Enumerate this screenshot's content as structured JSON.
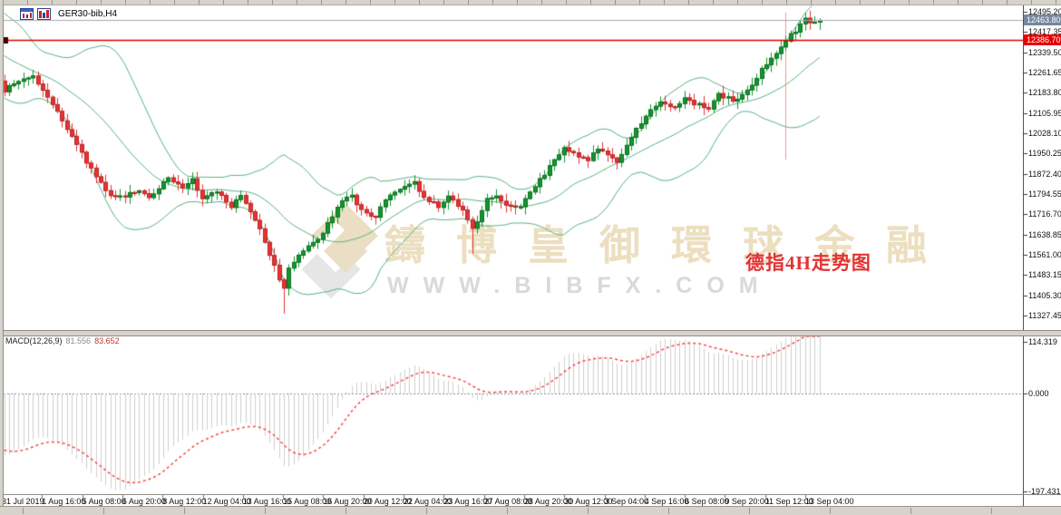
{
  "window": {
    "title": "GER30-bib,H4"
  },
  "toolbar": {
    "icons": [
      "chart-window-icon",
      "bar-chart-icon"
    ]
  },
  "price_axis": {
    "ticks": [
      "12495.20",
      "12417.35",
      "12339.50",
      "12261.65",
      "12183.80",
      "12105.95",
      "12028.10",
      "11950.25",
      "11872.40",
      "11794.55",
      "11716.70",
      "11638.85",
      "11561.00",
      "11483.15",
      "11405.30",
      "11327.45"
    ],
    "bid_box_value": "12463.80",
    "red_line_box_value": "12386.70"
  },
  "time_axis": {
    "labels": [
      "31 Jul 2019",
      "1 Aug 16:00",
      "5 Aug 08:00",
      "6 Aug 20:00",
      "8 Aug 12:00",
      "12 Aug 04:00",
      "13 Aug 16:00",
      "15 Aug 08:00",
      "16 Aug 20:00",
      "20 Aug 12:00",
      "22 Aug 04:00",
      "23 Aug 16:00",
      "27 Aug 08:00",
      "28 Aug 20:00",
      "30 Aug 12:00",
      "3 Sep 04:00",
      "4 Sep 16:00",
      "6 Sep 08:00",
      "9 Sep 20:00",
      "11 Sep 12:00",
      "13 Sep 04:00"
    ]
  },
  "macd_panel": {
    "label": "MACD(12,26,9)",
    "main_value": "81.556",
    "signal_value": "83.652",
    "axis_ticks": [
      "114.319",
      "0.000",
      "-197.431"
    ]
  },
  "watermark": {
    "brand": "鑄博皇御環球金融",
    "url": "WWW.BIBFX.COM"
  },
  "annotation": {
    "text": "德指4H走势图",
    "color": "#e23333"
  },
  "colors": {
    "bull": "#12962e",
    "bull_edge": "#0b6e20",
    "bear": "#e53434",
    "bear_edge": "#bc2323",
    "band": "#57b183",
    "bid_line": "#a9a9b2",
    "red_line": "#dd0000",
    "hist": "#cfcfcf",
    "signal": "#f44848",
    "zero": "#7b8db0",
    "pale_vline": "rgba(238,120,120,0.75)"
  },
  "chart_data": {
    "type": "candlestick",
    "symbol": "GER30-bib",
    "timeframe": "H4",
    "title": "GER30-bib,H4",
    "bars_total": 170,
    "price_axis_range": [
      11327.45,
      12495.2
    ],
    "price_axis_step": 77.85,
    "levels": {
      "bid": 12463.8,
      "red_horizontal_line": 12386.7
    },
    "indicators": [
      {
        "name": "Bollinger Bands",
        "period": 20,
        "deviation": 2
      },
      {
        "name": "MACD",
        "fast": 12,
        "slow": 26,
        "signal": 9,
        "current_main": 81.556,
        "current_signal": 83.652,
        "axis_max": 114.319,
        "axis_min": -197.431
      }
    ],
    "close_anchors": [
      [
        0,
        12190
      ],
      [
        3,
        12235
      ],
      [
        6,
        12245
      ],
      [
        8,
        12195
      ],
      [
        11,
        12115
      ],
      [
        13,
        12050
      ],
      [
        15,
        11985
      ],
      [
        17,
        11915
      ],
      [
        20,
        11835
      ],
      [
        22,
        11790
      ],
      [
        25,
        11785
      ],
      [
        28,
        11815
      ],
      [
        30,
        11785
      ],
      [
        34,
        11855
      ],
      [
        37,
        11820
      ],
      [
        39,
        11850
      ],
      [
        41,
        11780
      ],
      [
        44,
        11805
      ],
      [
        47,
        11745
      ],
      [
        49,
        11790
      ],
      [
        52,
        11700
      ],
      [
        55,
        11560
      ],
      [
        57,
        11470
      ],
      [
        58,
        11430
      ],
      [
        59,
        11505
      ],
      [
        62,
        11575
      ],
      [
        65,
        11615
      ],
      [
        67,
        11685
      ],
      [
        70,
        11770
      ],
      [
        72,
        11785
      ],
      [
        74,
        11735
      ],
      [
        77,
        11700
      ],
      [
        79,
        11780
      ],
      [
        82,
        11815
      ],
      [
        85,
        11845
      ],
      [
        87,
        11780
      ],
      [
        90,
        11750
      ],
      [
        92,
        11785
      ],
      [
        95,
        11730
      ],
      [
        97,
        11655
      ],
      [
        100,
        11770
      ],
      [
        102,
        11785
      ],
      [
        104,
        11755
      ],
      [
        107,
        11740
      ],
      [
        109,
        11800
      ],
      [
        112,
        11870
      ],
      [
        114,
        11925
      ],
      [
        116,
        11975
      ],
      [
        118,
        11950
      ],
      [
        121,
        11930
      ],
      [
        123,
        11965
      ],
      [
        126,
        11935
      ],
      [
        127,
        11910
      ],
      [
        130,
        12015
      ],
      [
        132,
        12065
      ],
      [
        134,
        12115
      ],
      [
        136,
        12145
      ],
      [
        139,
        12125
      ],
      [
        141,
        12165
      ],
      [
        144,
        12135
      ],
      [
        146,
        12125
      ],
      [
        148,
        12175
      ],
      [
        151,
        12155
      ],
      [
        153,
        12175
      ],
      [
        155,
        12210
      ],
      [
        157,
        12275
      ],
      [
        160,
        12330
      ],
      [
        162,
        12390
      ],
      [
        164,
        12420
      ],
      [
        166,
        12470
      ],
      [
        168,
        12450
      ],
      [
        169,
        12462
      ]
    ],
    "wick_events": [
      {
        "bar": 58,
        "low": 11335
      },
      {
        "bar": 97,
        "low": 11565
      },
      {
        "bar": 166,
        "high": 12492
      }
    ],
    "pale_vertical_line_bar": 162
  }
}
